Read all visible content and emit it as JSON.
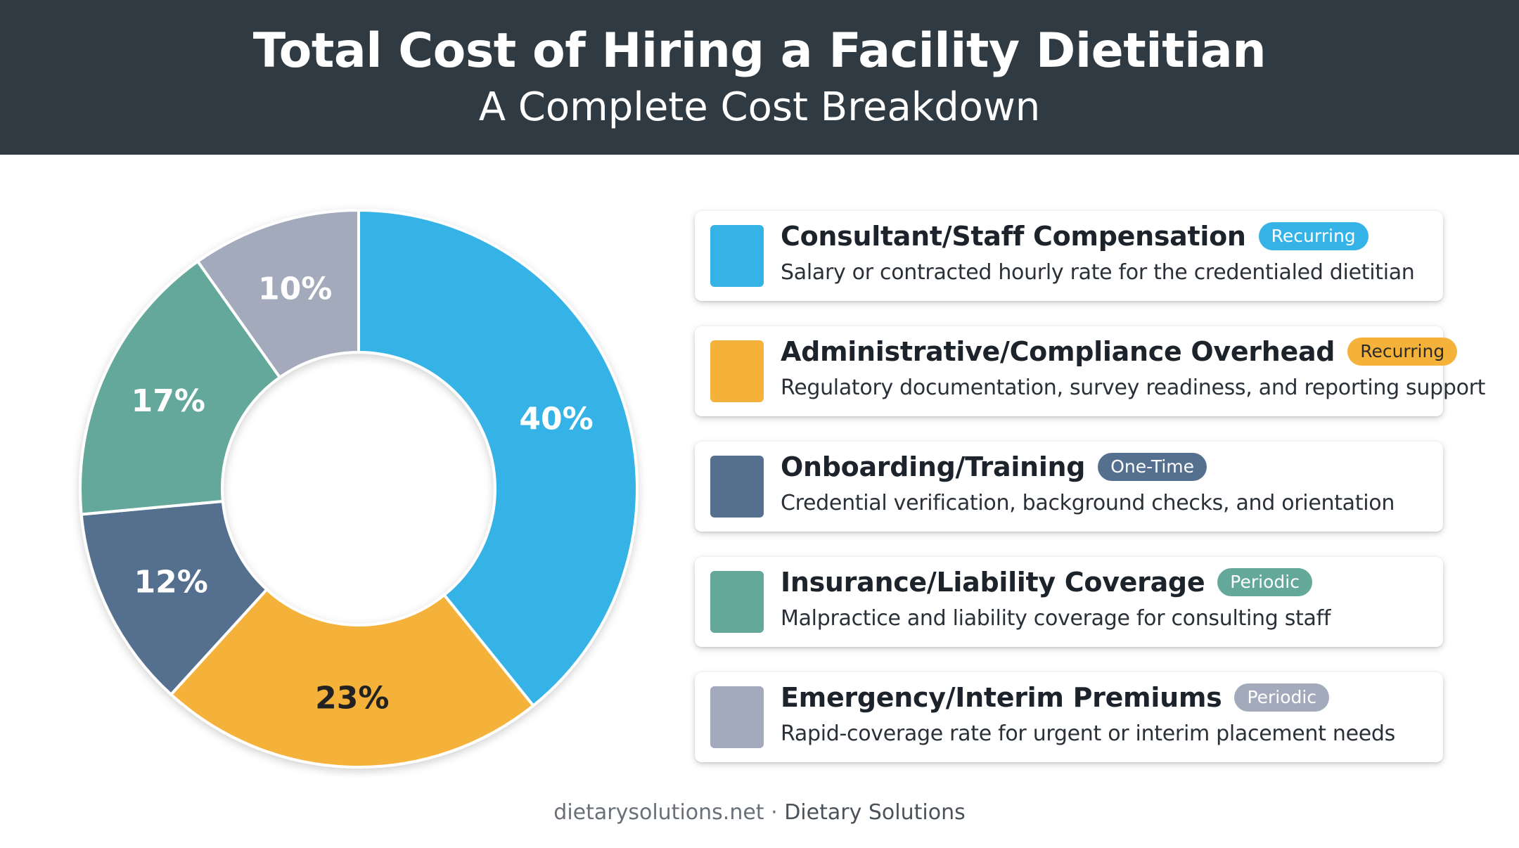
{
  "header": {
    "title": "Total Cost of Hiring a Facility Dietitian",
    "subtitle": "A Complete Cost Breakdown"
  },
  "chart_data": {
    "type": "pie",
    "donut": true,
    "start": "12 o'clock, clockwise",
    "slices": [
      {
        "label": "Consultant/Staff Compensation",
        "value": 40,
        "display": "40%",
        "color": "#35b2e6"
      },
      {
        "label": "Administrative/Compliance Overhead",
        "value": 23,
        "display": "23%",
        "color": "#f4b23b"
      },
      {
        "label": "Onboarding/Training",
        "value": 12,
        "display": "12%",
        "color": "#55708f"
      },
      {
        "label": "Insurance/Liability Coverage",
        "value": 17,
        "display": "17%",
        "color": "#64a89a"
      },
      {
        "label": "Emergency/Interim Premiums",
        "value": 10,
        "display": "10%",
        "color": "#a2aabb"
      }
    ]
  },
  "legend": {
    "items": [
      {
        "title": "Consultant/Staff Compensation",
        "badge": "Recurring",
        "badge_bg": "#35b2e6",
        "badge_color": "#ffffff",
        "desc": "Salary or contracted hourly rate for the credentialed dietitian",
        "color": "#35b2e6"
      },
      {
        "title": "Administrative/Compliance Overhead",
        "badge": "Recurring",
        "badge_bg": "#f4b23b",
        "badge_color": "#2b2b2b",
        "desc": "Regulatory documentation, survey readiness, and reporting support",
        "color": "#f4b23b"
      },
      {
        "title": "Onboarding/Training",
        "badge": "One-Time",
        "badge_bg": "#55708f",
        "badge_color": "#ffffff",
        "desc": "Credential verification, background checks, and orientation",
        "color": "#55708f"
      },
      {
        "title": "Insurance/Liability Coverage",
        "badge": "Periodic",
        "badge_bg": "#64a89a",
        "badge_color": "#ffffff",
        "desc": "Malpractice and liability coverage for consulting staff",
        "color": "#64a89a"
      },
      {
        "title": "Emergency/Interim Premiums",
        "badge": "Periodic",
        "badge_bg": "#a2aabb",
        "badge_color": "#ffffff",
        "desc": "Rapid-coverage rate for urgent or interim placement needs",
        "color": "#a2aabb"
      }
    ]
  },
  "footer": {
    "site": "dietarysolutions.net",
    "separator": "·",
    "brand": "Dietary Solutions"
  }
}
